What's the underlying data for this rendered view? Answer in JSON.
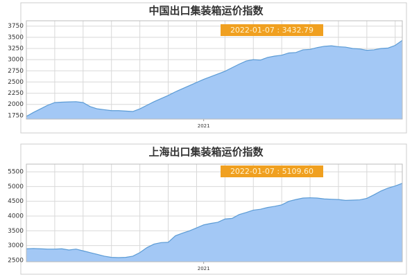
{
  "chart_data": [
    {
      "type": "area",
      "title": "中国出口集装箱运价指数",
      "annotation": "2022-01-07 : 3432.79",
      "categories": [
        null,
        null,
        null,
        null,
        null,
        null,
        null,
        null,
        null,
        null,
        null,
        null,
        null,
        null,
        null,
        null,
        null,
        null,
        null,
        null,
        null,
        null,
        null,
        null,
        null,
        "2021",
        null,
        null,
        null,
        null,
        null,
        null,
        null,
        null,
        null,
        null,
        null,
        null,
        null,
        null,
        null,
        null,
        null,
        null,
        null,
        null,
        null,
        null,
        null,
        null,
        null,
        null,
        null,
        null
      ],
      "values": [
        1730,
        1820,
        1900,
        1980,
        2040,
        2050,
        2055,
        2060,
        2040,
        1950,
        1900,
        1880,
        1860,
        1860,
        1850,
        1840,
        1900,
        1980,
        2060,
        2130,
        2200,
        2280,
        2350,
        2420,
        2490,
        2560,
        2620,
        2680,
        2740,
        2820,
        2900,
        2970,
        3000,
        2990,
        3050,
        3080,
        3100,
        3150,
        3160,
        3220,
        3230,
        3270,
        3300,
        3310,
        3290,
        3280,
        3250,
        3240,
        3210,
        3220,
        3250,
        3260,
        3320,
        3432.79
      ],
      "color": "#a3c8f5",
      "line_color": "#5b9bd5",
      "annotation_color": "#f0a020",
      "ylim": [
        1670,
        3870
      ],
      "yticks": [
        1750,
        2000,
        2250,
        2500,
        2750,
        3000,
        3250,
        3500,
        3750
      ],
      "grid": true
    },
    {
      "type": "area",
      "title": "上海出口集装箱运价指数",
      "annotation": "2022-01-07 : 5109.60",
      "categories": [
        null,
        null,
        null,
        null,
        null,
        null,
        null,
        null,
        null,
        null,
        null,
        null,
        null,
        null,
        null,
        null,
        null,
        null,
        null,
        null,
        null,
        null,
        null,
        null,
        null,
        "2021",
        null,
        null,
        null,
        null,
        null,
        null,
        null,
        null,
        null,
        null,
        null,
        null,
        null,
        null,
        null,
        null,
        null,
        null,
        null,
        null,
        null,
        null,
        null,
        null,
        null,
        null,
        null,
        null
      ],
      "values": [
        2890,
        2900,
        2890,
        2880,
        2880,
        2890,
        2850,
        2880,
        2820,
        2760,
        2700,
        2640,
        2600,
        2590,
        2600,
        2640,
        2760,
        2930,
        3050,
        3100,
        3110,
        3330,
        3420,
        3500,
        3600,
        3700,
        3750,
        3790,
        3900,
        3920,
        4050,
        4120,
        4200,
        4230,
        4290,
        4330,
        4380,
        4500,
        4560,
        4610,
        4620,
        4610,
        4580,
        4570,
        4560,
        4530,
        4540,
        4550,
        4600,
        4720,
        4850,
        4950,
        5020,
        5109.6
      ],
      "color": "#a3c8f5",
      "line_color": "#5b9bd5",
      "annotation_color": "#f0a020",
      "ylim": [
        2450,
        5760
      ],
      "yticks": [
        2500,
        3000,
        3500,
        4000,
        4500,
        5000,
        5500
      ],
      "grid": true
    }
  ]
}
